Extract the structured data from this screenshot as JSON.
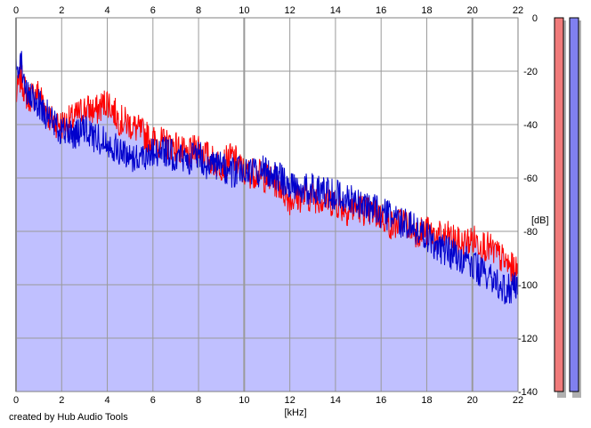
{
  "chart_data": {
    "type": "line",
    "xlabel": "[kHz]",
    "ylabel": "[dB]",
    "xlim": [
      0,
      22
    ],
    "ylim": [
      -140,
      0
    ],
    "x_ticks": [
      0,
      2,
      4,
      6,
      8,
      10,
      12,
      14,
      16,
      18,
      20,
      22
    ],
    "y_ticks": [
      0,
      -20,
      -40,
      -60,
      -80,
      -100,
      -120,
      -140
    ],
    "grid": true,
    "series": [
      {
        "color": "#ff0000",
        "x": [
          0,
          0.2,
          0.5,
          1.0,
          1.5,
          2,
          2.5,
          3,
          3.5,
          4,
          4.5,
          5,
          5.5,
          6,
          6.5,
          7,
          7.5,
          8,
          8.5,
          9,
          9.5,
          10,
          10.5,
          11,
          11.5,
          12,
          12.5,
          13,
          13.5,
          14,
          14.5,
          15,
          15.5,
          16,
          16.5,
          17,
          17.5,
          18,
          18.5,
          19,
          19.5,
          20,
          20.5,
          21,
          21.5,
          22
        ],
        "values": [
          -30,
          -22,
          -30,
          -28,
          -38,
          -40,
          -38,
          -34,
          -35,
          -31,
          -38,
          -40,
          -43,
          -46,
          -47,
          -48,
          -52,
          -48,
          -53,
          -55,
          -52,
          -58,
          -58,
          -60,
          -62,
          -68,
          -67,
          -67,
          -68,
          -69,
          -72,
          -71,
          -73,
          -74,
          -78,
          -76,
          -80,
          -80,
          -82,
          -82,
          -85,
          -83,
          -85,
          -88,
          -92,
          -96
        ]
      },
      {
        "color": "#0000cc",
        "x": [
          0,
          0.2,
          0.5,
          1.0,
          1.5,
          2,
          2.5,
          3,
          3.5,
          4,
          4.5,
          5,
          5.5,
          6,
          6.5,
          7,
          7.5,
          8,
          8.5,
          9,
          9.5,
          10,
          10.5,
          11,
          11.5,
          12,
          12.5,
          13,
          13.5,
          14,
          14.5,
          15,
          15.5,
          16,
          16.5,
          17,
          17.5,
          18,
          18.5,
          19,
          19.5,
          20,
          20.5,
          21,
          21.5,
          22
        ],
        "values": [
          -20,
          -15,
          -30,
          -32,
          -38,
          -42,
          -44,
          -42,
          -45,
          -46,
          -50,
          -52,
          -52,
          -50,
          -50,
          -52,
          -53,
          -51,
          -56,
          -56,
          -58,
          -57,
          -58,
          -57,
          -60,
          -62,
          -64,
          -64,
          -65,
          -66,
          -68,
          -69,
          -71,
          -73,
          -75,
          -77,
          -79,
          -82,
          -86,
          -88,
          -90,
          -93,
          -96,
          -99,
          -102,
          -101
        ]
      }
    ],
    "level_meters": [
      {
        "color": "#f07b7b"
      },
      {
        "color": "#8080f0"
      }
    ]
  },
  "footer": {
    "text": "created by Hub Audio Tools"
  }
}
